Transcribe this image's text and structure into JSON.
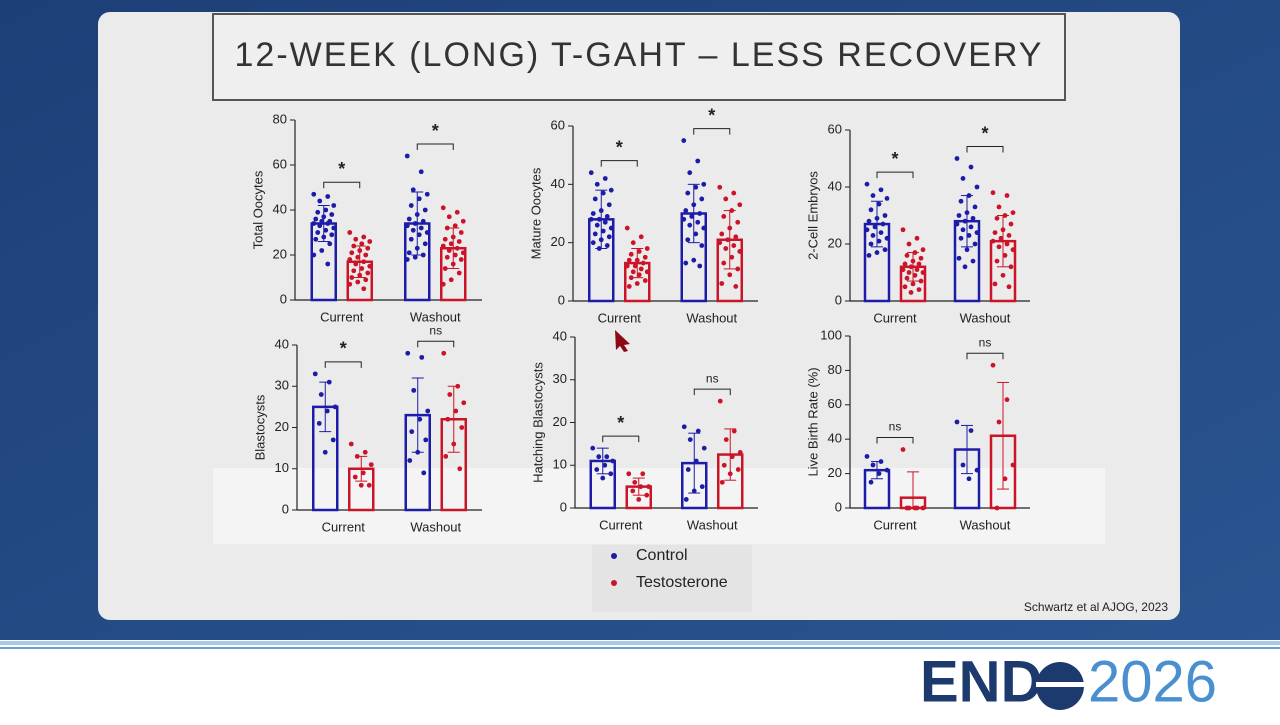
{
  "title": "12-WEEK (LONG) T-GAHT – LESS RECOVERY",
  "citation": "Schwartz et al AJOG, 2023",
  "logo": {
    "left": "END",
    "right": "2026"
  },
  "legend": [
    {
      "name": "Control",
      "color": "#1c1ca8"
    },
    {
      "name": "Testosterone",
      "color": "#cc1428"
    }
  ],
  "chart_data": [
    {
      "type": "bar",
      "y_label": "Total Oocytes",
      "categories": [
        "Current",
        "Washout"
      ],
      "ylim": [
        0,
        80
      ],
      "yticks": [
        0,
        20,
        40,
        60,
        80
      ],
      "significance": [
        "*",
        "*"
      ],
      "series": [
        {
          "values": [
            34,
            34
          ],
          "errors": [
            8,
            14
          ],
          "points": [
            [
              47,
              46,
              44,
              42,
              40,
              39,
              38,
              37,
              36,
              35,
              35,
              34,
              34,
              33,
              32,
              31,
              30,
              29,
              28,
              27,
              25,
              22,
              20,
              16
            ],
            [
              64,
              57,
              49,
              47,
              45,
              42,
              40,
              38,
              36,
              35,
              34,
              33,
              32,
              31,
              30,
              29,
              27,
              25,
              23,
              21,
              20,
              19,
              18
            ]
          ]
        },
        {
          "values": [
            17,
            23
          ],
          "errors": [
            7,
            9
          ],
          "points": [
            [
              30,
              28,
              27,
              26,
              25,
              24,
              23,
              22,
              21,
              20,
              19,
              18,
              17,
              16,
              15,
              14,
              13,
              12,
              11,
              10,
              9,
              8,
              7,
              5
            ],
            [
              41,
              39,
              37,
              35,
              33,
              32,
              30,
              28,
              27,
              26,
              25,
              24,
              23,
              22,
              21,
              20,
              19,
              18,
              16,
              14,
              12,
              9,
              7
            ]
          ]
        }
      ]
    },
    {
      "type": "bar",
      "y_label": "Mature Oocytes",
      "categories": [
        "Current",
        "Washout"
      ],
      "ylim": [
        0,
        60
      ],
      "yticks": [
        0,
        20,
        40,
        60
      ],
      "significance": [
        "*",
        "*"
      ],
      "series": [
        {
          "values": [
            28,
            30
          ],
          "errors": [
            10,
            10
          ],
          "points": [
            [
              44,
              42,
              40,
              38,
              37,
              35,
              33,
              31,
              30,
              29,
              28,
              28,
              27,
              26,
              25,
              24,
              23,
              22,
              21,
              20,
              19,
              18
            ],
            [
              55,
              48,
              44,
              40,
              39,
              37,
              35,
              33,
              31,
              30,
              29,
              28,
              27,
              26,
              25,
              23,
              21,
              19,
              14,
              13,
              12
            ]
          ]
        },
        {
          "values": [
            13,
            21
          ],
          "errors": [
            5,
            10
          ],
          "points": [
            [
              25,
              22,
              20,
              18,
              17,
              16,
              15,
              14,
              14,
              13,
              12,
              12,
              11,
              10,
              10,
              9,
              8,
              7,
              6,
              5
            ],
            [
              39,
              37,
              35,
              33,
              31,
              29,
              27,
              25,
              23,
              22,
              21,
              20,
              19,
              18,
              17,
              15,
              13,
              11,
              9,
              6,
              5
            ]
          ]
        }
      ]
    },
    {
      "type": "bar",
      "y_label": "2-Cell Embryos",
      "categories": [
        "Current",
        "Washout"
      ],
      "ylim": [
        0,
        60
      ],
      "yticks": [
        0,
        20,
        40,
        60
      ],
      "significance": [
        "*",
        "*"
      ],
      "series": [
        {
          "values": [
            27,
            28
          ],
          "errors": [
            8,
            9
          ],
          "points": [
            [
              41,
              39,
              37,
              36,
              34,
              32,
              30,
              29,
              28,
              27,
              26,
              25,
              24,
              23,
              22,
              21,
              20,
              18,
              17,
              16
            ],
            [
              50,
              47,
              43,
              40,
              37,
              35,
              33,
              31,
              30,
              29,
              28,
              27,
              26,
              25,
              24,
              23,
              22,
              20,
              18,
              15,
              14,
              12
            ]
          ]
        },
        {
          "values": [
            12,
            21
          ],
          "errors": [
            5,
            9
          ],
          "points": [
            [
              25,
              22,
              20,
              18,
              17,
              16,
              15,
              14,
              13,
              13,
              12,
              11,
              11,
              10,
              10,
              9,
              8,
              7,
              6,
              5,
              4,
              3
            ],
            [
              38,
              37,
              33,
              31,
              30,
              29,
              27,
              25,
              24,
              23,
              22,
              21,
              20,
              19,
              18,
              16,
              14,
              12,
              9,
              6,
              5
            ]
          ]
        }
      ]
    },
    {
      "type": "bar",
      "y_label": "Blastocysts",
      "categories": [
        "Current",
        "Washout"
      ],
      "ylim": [
        0,
        40
      ],
      "yticks": [
        0,
        10,
        20,
        30,
        40
      ],
      "significance": [
        "*",
        "ns"
      ],
      "series": [
        {
          "values": [
            25,
            23
          ],
          "errors": [
            6,
            9
          ],
          "points": [
            [
              33,
              31,
              28,
              25,
              24,
              21,
              17,
              14
            ],
            [
              38,
              37,
              29,
              24,
              22,
              19,
              17,
              14,
              12,
              9
            ]
          ]
        },
        {
          "values": [
            10,
            22
          ],
          "errors": [
            3,
            8
          ],
          "points": [
            [
              16,
              14,
              13,
              11,
              9,
              8,
              6,
              6
            ],
            [
              38,
              30,
              28,
              26,
              24,
              22,
              20,
              16,
              13,
              10
            ]
          ]
        }
      ]
    },
    {
      "type": "bar",
      "y_label": "Hatching Blastocysts",
      "categories": [
        "Current",
        "Washout"
      ],
      "ylim": [
        0,
        40
      ],
      "yticks": [
        0,
        10,
        20,
        30,
        40
      ],
      "significance": [
        "*",
        "ns"
      ],
      "series": [
        {
          "values": [
            11,
            10.5
          ],
          "errors": [
            3,
            7
          ],
          "points": [
            [
              14,
              12,
              12,
              11,
              10,
              9,
              8,
              7
            ],
            [
              19,
              18,
              16,
              14,
              11,
              9,
              5,
              4,
              2
            ]
          ]
        },
        {
          "values": [
            5,
            12.5
          ],
          "errors": [
            2,
            6
          ],
          "points": [
            [
              8,
              8,
              6,
              5,
              5,
              4,
              3,
              2
            ],
            [
              25,
              18,
              16,
              13,
              12,
              10,
              9,
              8,
              6
            ]
          ]
        }
      ]
    },
    {
      "type": "bar",
      "y_label": "Live Birth Rate (%)",
      "categories": [
        "Current",
        "Washout"
      ],
      "ylim": [
        0,
        100
      ],
      "yticks": [
        0,
        20,
        40,
        60,
        80,
        100
      ],
      "significance": [
        "ns",
        "ns"
      ],
      "series": [
        {
          "values": [
            22,
            34
          ],
          "errors": [
            5,
            14
          ],
          "points": [
            [
              30,
              27,
              25,
              22,
              20,
              15
            ],
            [
              50,
              45,
              25,
              22,
              17
            ]
          ]
        },
        {
          "values": [
            6,
            42
          ],
          "errors": [
            15,
            31
          ],
          "points": [
            [
              34,
              0,
              0,
              0,
              0,
              0
            ],
            [
              83,
              63,
              50,
              25,
              17,
              0
            ]
          ]
        }
      ]
    }
  ]
}
